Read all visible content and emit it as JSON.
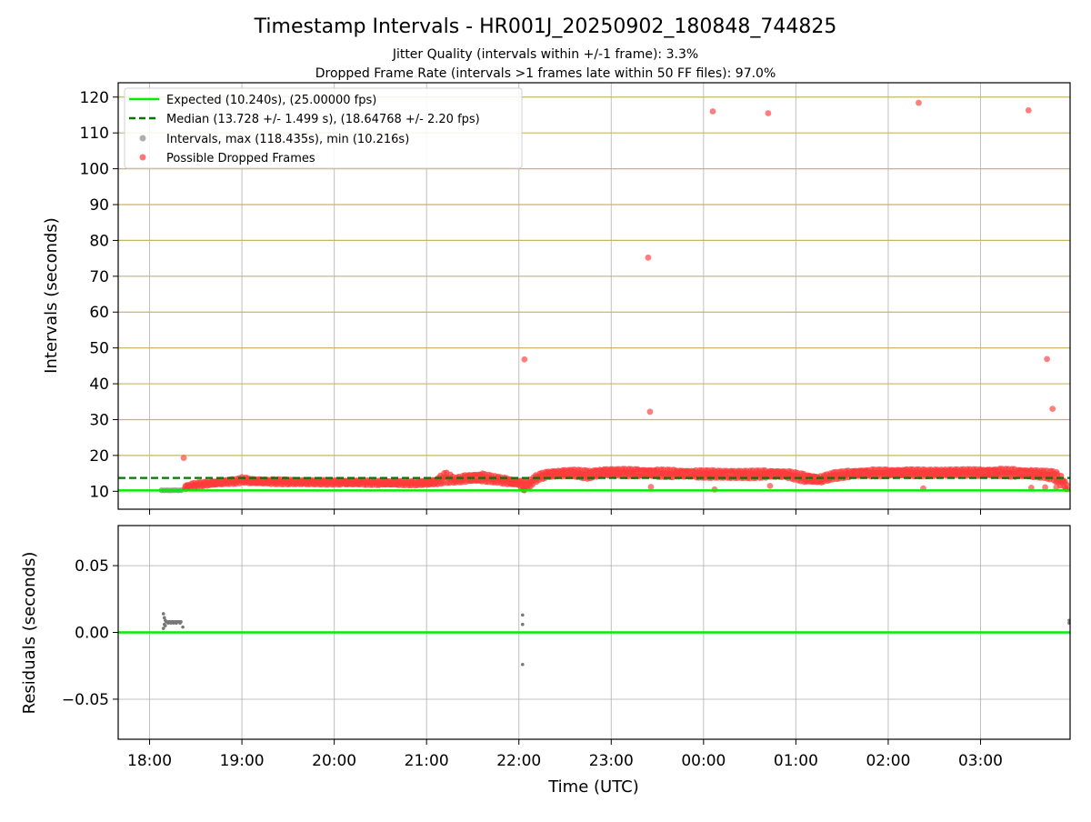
{
  "chart_data": [
    {
      "type": "scatter",
      "title": "Timestamp Intervals - HR001J_20250902_180848_744825",
      "subtitle_lines": [
        "Jitter Quality (intervals within +/-1 frame): 3.3%",
        "Dropped Frame Rate (intervals >1 frames late within 50 FF files): 97.0%"
      ],
      "ylabel": "Intervals (seconds)",
      "ylim": [
        5,
        124
      ],
      "yticks": [
        10,
        20,
        30,
        40,
        50,
        60,
        70,
        80,
        90,
        100,
        110,
        120
      ],
      "ytick_labels": [
        "10",
        "20",
        "30",
        "40",
        "50",
        "60",
        "70",
        "80",
        "90",
        "100",
        "110",
        "120"
      ],
      "grid": true,
      "legend": {
        "placement": "top-left",
        "entries": [
          {
            "label": "Expected (10.240s), (25.00000 fps)",
            "color": "#00ee00",
            "style": "solid-line"
          },
          {
            "label": "Median (13.728 +/- 1.499 s), (18.64768 +/- 2.20 fps)",
            "color": "#007700",
            "style": "dashed-line"
          },
          {
            "label": "Intervals, max (118.435s), min (10.216s)",
            "color": "#8c8c8c",
            "style": "marker"
          },
          {
            "label": "Possible Dropped Frames",
            "color": "#ff3b3b",
            "style": "marker"
          }
        ]
      },
      "expected_interval": 10.24,
      "median_interval": 13.728,
      "colors": {
        "expected": "#00ee00",
        "median": "#007700",
        "intervals": "#8c8c8c",
        "dropped": "#ff3b3b",
        "grid": "#c9b46a"
      },
      "interval_points": [
        [
          18.13,
          10.28
        ],
        [
          18.16,
          10.26
        ],
        [
          18.19,
          10.29
        ],
        [
          18.22,
          10.25
        ],
        [
          18.25,
          10.27
        ],
        [
          18.28,
          10.3
        ],
        [
          18.31,
          10.26
        ],
        [
          18.34,
          10.28
        ]
      ],
      "dropped_band": [
        [
          18.38,
          10.6,
          11.6
        ],
        [
          18.45,
          11.0,
          12.2
        ],
        [
          18.55,
          11.3,
          12.6
        ],
        [
          18.65,
          11.6,
          12.8
        ],
        [
          18.75,
          11.8,
          13.0
        ],
        [
          18.85,
          12.0,
          13.3
        ],
        [
          18.95,
          12.1,
          13.5
        ],
        [
          19.0,
          12.4,
          14.0
        ],
        [
          19.1,
          12.1,
          13.6
        ],
        [
          19.3,
          12.0,
          13.4
        ],
        [
          19.5,
          11.9,
          13.3
        ],
        [
          19.7,
          11.9,
          13.2
        ],
        [
          19.9,
          11.8,
          13.2
        ],
        [
          20.1,
          11.8,
          13.1
        ],
        [
          20.3,
          11.8,
          13.1
        ],
        [
          20.5,
          11.7,
          13.0
        ],
        [
          20.7,
          11.7,
          12.9
        ],
        [
          20.9,
          11.6,
          12.9
        ],
        [
          21.1,
          11.8,
          13.4
        ],
        [
          21.2,
          12.3,
          15.5
        ],
        [
          21.3,
          12.4,
          13.8
        ],
        [
          21.45,
          12.6,
          14.8
        ],
        [
          21.6,
          12.7,
          15.0
        ],
        [
          21.75,
          12.4,
          14.2
        ],
        [
          21.9,
          11.8,
          13.6
        ],
        [
          22.0,
          11.6,
          13.2
        ],
        [
          22.05,
          10.3,
          12.8
        ],
        [
          22.1,
          11.0,
          13.0
        ],
        [
          22.2,
          13.0,
          14.8
        ],
        [
          22.3,
          13.8,
          15.6
        ],
        [
          22.45,
          14.0,
          16.0
        ],
        [
          22.6,
          14.1,
          16.1
        ],
        [
          22.75,
          13.4,
          15.8
        ],
        [
          22.9,
          14.3,
          16.3
        ],
        [
          23.1,
          14.2,
          16.3
        ],
        [
          23.3,
          14.1,
          16.2
        ],
        [
          23.5,
          14.0,
          16.1
        ],
        [
          23.7,
          13.9,
          16.0
        ],
        [
          23.9,
          13.8,
          15.9
        ],
        [
          24.1,
          13.7,
          15.9
        ],
        [
          24.3,
          13.6,
          15.8
        ],
        [
          24.5,
          13.6,
          15.8
        ],
        [
          24.7,
          13.8,
          15.9
        ],
        [
          24.9,
          13.8,
          15.7
        ],
        [
          25.1,
          12.5,
          14.8
        ],
        [
          25.25,
          12.3,
          14.2
        ],
        [
          25.4,
          13.3,
          15.3
        ],
        [
          25.6,
          14.0,
          15.9
        ],
        [
          25.8,
          14.1,
          16.1
        ],
        [
          26.0,
          14.2,
          16.1
        ],
        [
          26.2,
          14.2,
          16.2
        ],
        [
          26.4,
          14.1,
          16.1
        ],
        [
          26.6,
          14.2,
          16.2
        ],
        [
          26.8,
          14.3,
          16.2
        ],
        [
          27.0,
          14.2,
          16.2
        ],
        [
          27.2,
          14.2,
          16.3
        ],
        [
          27.4,
          14.0,
          16.2
        ],
        [
          27.55,
          13.9,
          16.0
        ],
        [
          27.7,
          13.6,
          15.8
        ],
        [
          27.8,
          13.0,
          15.6
        ],
        [
          27.88,
          11.0,
          14.3
        ],
        [
          27.95,
          10.3,
          11.2
        ]
      ],
      "dropped_outliers": [
        [
          18.37,
          19.3
        ],
        [
          22.06,
          46.8
        ],
        [
          22.06,
          10.3
        ],
        [
          23.4,
          75.2
        ],
        [
          23.42,
          32.2
        ],
        [
          23.43,
          11.2
        ],
        [
          24.1,
          116.0
        ],
        [
          24.12,
          10.5
        ],
        [
          24.7,
          115.5
        ],
        [
          24.72,
          11.5
        ],
        [
          26.33,
          118.4
        ],
        [
          26.38,
          10.8
        ],
        [
          27.52,
          116.3
        ],
        [
          27.55,
          11.0
        ],
        [
          27.72,
          46.9
        ],
        [
          27.78,
          33.0
        ],
        [
          27.7,
          11.1
        ],
        [
          27.82,
          11.1
        ]
      ]
    },
    {
      "type": "scatter",
      "ylabel": "Residuals (seconds)",
      "xlabel": "Time (UTC)",
      "ylim": [
        -0.08,
        0.08
      ],
      "yticks": [
        -0.05,
        0.0,
        0.05
      ],
      "ytick_labels": [
        "−0.05",
        "0.00",
        "0.05"
      ],
      "x_range_hours": [
        17.66,
        27.97
      ],
      "xticks": [
        18,
        19,
        20,
        21,
        22,
        23,
        24,
        25,
        26,
        27
      ],
      "xtick_labels": [
        "18:00",
        "19:00",
        "20:00",
        "21:00",
        "22:00",
        "23:00",
        "00:00",
        "01:00",
        "02:00",
        "03:00"
      ],
      "grid": true,
      "zero_line_color": "#00ee00",
      "residual_points": [
        [
          18.15,
          0.014
        ],
        [
          18.16,
          0.011
        ],
        [
          18.17,
          0.009
        ],
        [
          18.18,
          0.008
        ],
        [
          18.19,
          0.008
        ],
        [
          18.2,
          0.007
        ],
        [
          18.21,
          0.008
        ],
        [
          18.22,
          0.008
        ],
        [
          18.23,
          0.007
        ],
        [
          18.24,
          0.008
        ],
        [
          18.25,
          0.008
        ],
        [
          18.26,
          0.007
        ],
        [
          18.27,
          0.008
        ],
        [
          18.28,
          0.008
        ],
        [
          18.29,
          0.007
        ],
        [
          18.3,
          0.008
        ],
        [
          18.31,
          0.008
        ],
        [
          18.32,
          0.008
        ],
        [
          18.33,
          0.007
        ],
        [
          18.34,
          0.008
        ],
        [
          18.15,
          0.003
        ],
        [
          18.16,
          0.006
        ],
        [
          18.17,
          0.005
        ],
        [
          18.36,
          0.004
        ],
        [
          22.04,
          0.013
        ],
        [
          22.04,
          0.006
        ],
        [
          22.04,
          -0.024
        ],
        [
          27.96,
          0.009
        ],
        [
          27.96,
          0.007
        ]
      ]
    }
  ]
}
